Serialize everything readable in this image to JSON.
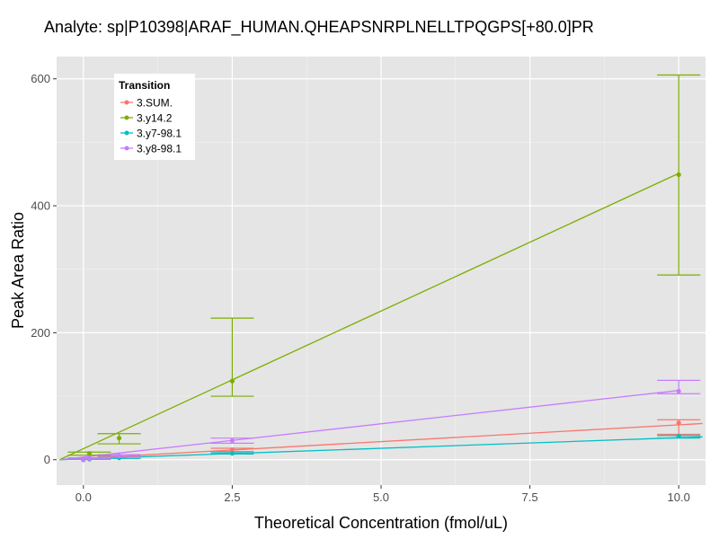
{
  "chart_data": {
    "type": "line",
    "title": "Analyte: sp|P10398|ARAF_HUMAN.QHEAPSNRPLNELLTPQGPS[+80.0]PR",
    "xlabel": "Theoretical Concentration (fmol/uL)",
    "ylabel": "Peak Area Ratio",
    "xlim": [
      -0.45,
      10.45
    ],
    "ylim": [
      -40,
      635
    ],
    "x_ticks": [
      0,
      2.5,
      5,
      7.5,
      10
    ],
    "x_tick_labels": [
      "0.0",
      "2.5",
      "5.0",
      "7.5",
      "10.0"
    ],
    "y_ticks": [
      0,
      200,
      400,
      600
    ],
    "y_tick_labels": [
      "0",
      "200",
      "400",
      "600"
    ],
    "grid": true,
    "legend": {
      "title": "Transition",
      "position": "top-left"
    },
    "series": [
      {
        "name": "3.SUM.",
        "color": "#F8766D",
        "points": [
          {
            "x": 0,
            "y": 0,
            "ymin": 0,
            "ymax": 0
          },
          {
            "x": 0.1,
            "y": 1,
            "ymin": 0.5,
            "ymax": 1.5
          },
          {
            "x": 0.6,
            "y": 5,
            "ymin": 4,
            "ymax": 6
          },
          {
            "x": 2.5,
            "y": 16,
            "ymin": 13,
            "ymax": 18
          },
          {
            "x": 10,
            "y": 58,
            "ymin": 40,
            "ymax": 63
          }
        ],
        "fit": [
          [
            -0.4,
            0
          ],
          [
            10.4,
            57
          ]
        ]
      },
      {
        "name": "3.y14.2",
        "color": "#7CAE00",
        "points": [
          {
            "x": 0,
            "y": 0,
            "ymin": 0,
            "ymax": 0
          },
          {
            "x": 0.1,
            "y": 10,
            "ymin": 7,
            "ymax": 12
          },
          {
            "x": 0.6,
            "y": 34,
            "ymin": 25,
            "ymax": 41
          },
          {
            "x": 2.5,
            "y": 124,
            "ymin": 100,
            "ymax": 223
          },
          {
            "x": 10,
            "y": 449,
            "ymin": 291,
            "ymax": 606
          }
        ],
        "fit": [
          [
            -0.4,
            0
          ],
          [
            10,
            451
          ]
        ]
      },
      {
        "name": "3.y7-98.1",
        "color": "#00BFC4",
        "points": [
          {
            "x": 0,
            "y": 0,
            "ymin": 0,
            "ymax": 0
          },
          {
            "x": 0.1,
            "y": 1,
            "ymin": 0.5,
            "ymax": 1.5
          },
          {
            "x": 0.6,
            "y": 3,
            "ymin": 2,
            "ymax": 4
          },
          {
            "x": 2.5,
            "y": 10,
            "ymin": 9,
            "ymax": 11
          },
          {
            "x": 10,
            "y": 37,
            "ymin": 34,
            "ymax": 38
          }
        ],
        "fit": [
          [
            -0.4,
            0
          ],
          [
            10.4,
            36
          ]
        ]
      },
      {
        "name": "3.y8-98.1",
        "color": "#C77CFF",
        "points": [
          {
            "x": 0,
            "y": 0,
            "ymin": 0,
            "ymax": 0
          },
          {
            "x": 0.1,
            "y": 2,
            "ymin": 1,
            "ymax": 3
          },
          {
            "x": 0.6,
            "y": 6,
            "ymin": 4,
            "ymax": 8
          },
          {
            "x": 2.5,
            "y": 30,
            "ymin": 26,
            "ymax": 34
          },
          {
            "x": 10,
            "y": 108,
            "ymin": 104,
            "ymax": 125
          }
        ],
        "fit": [
          [
            -0.4,
            0
          ],
          [
            10,
            109
          ]
        ]
      }
    ]
  }
}
